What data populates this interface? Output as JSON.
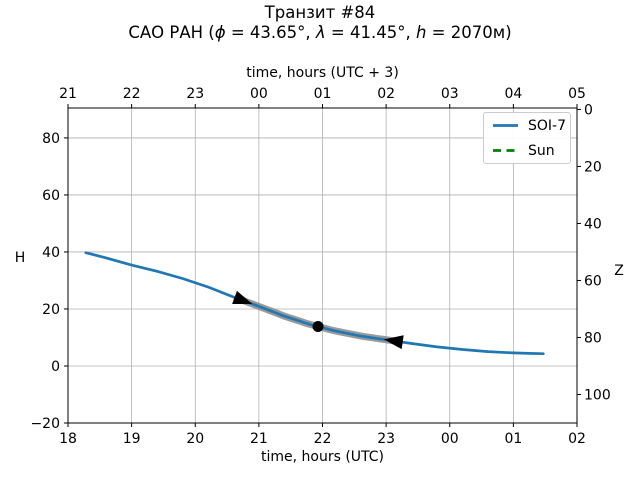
{
  "figure_title": "Транзит #84",
  "subtitle_segments": [
    {
      "text": "САО РАН (",
      "italic": false
    },
    {
      "text": "ϕ",
      "italic": true
    },
    {
      "text": " = 43.65°, ",
      "italic": false
    },
    {
      "text": "λ",
      "italic": true
    },
    {
      "text": " = 41.45°, ",
      "italic": false
    },
    {
      "text": "h",
      "italic": true
    },
    {
      "text": " = 2070м)",
      "italic": false
    }
  ],
  "chart_data": {
    "type": "line",
    "title": "Транзит #84",
    "subtitle": "САО РАН (ϕ = 43.65°, λ = 41.45°, h = 2070м)",
    "site": {
      "name": "САО РАН",
      "phi_deg": 43.65,
      "lambda_deg": 41.45,
      "h_m": 2070
    },
    "transit_number": 84,
    "xlabel_bottom": "time, hours (UTC)",
    "xlabel_top": "time, hours (UTC + 3)",
    "ylabel_left": "H",
    "ylabel_right": "Z",
    "grid": true,
    "x_axis": {
      "range_utc": [
        18,
        26
      ],
      "tick_values": [
        18,
        19,
        20,
        21,
        22,
        23,
        24,
        25,
        26
      ],
      "tick_labels_bottom": [
        "18",
        "19",
        "20",
        "21",
        "22",
        "23",
        "00",
        "01",
        "02"
      ],
      "tick_labels_top": [
        "21",
        "22",
        "23",
        "00",
        "01",
        "02",
        "03",
        "04",
        "05"
      ]
    },
    "y_axis_left": {
      "label": "H",
      "range": [
        -20,
        90.5
      ],
      "ticks": [
        -20,
        0,
        20,
        40,
        60,
        80
      ]
    },
    "y_axis_right": {
      "label": "Z",
      "ticks": [
        0,
        20,
        40,
        60,
        80,
        100
      ],
      "relation": "Z = 90 - H"
    },
    "series": [
      {
        "name": "SOI-7",
        "color": "#1f77b4",
        "dashed": false,
        "x": [
          18.28,
          18.6,
          19.0,
          19.4,
          19.8,
          20.2,
          20.6,
          21.0,
          21.4,
          21.8,
          22.2,
          22.6,
          23.0,
          23.4,
          23.8,
          24.2,
          24.6,
          25.0,
          25.25,
          25.47
        ],
        "y": [
          39.75,
          37.9,
          35.4,
          33.2,
          30.7,
          27.7,
          24.2,
          20.9,
          17.5,
          14.6,
          12.3,
          10.5,
          9.2,
          7.9,
          6.7,
          5.8,
          5.05,
          4.6,
          4.4,
          4.3
        ]
      },
      {
        "name": "Sun",
        "color": "#008000",
        "dashed": true,
        "x": [],
        "y": []
      }
    ],
    "transit": {
      "start_utc": 20.75,
      "mid_utc": 21.93,
      "end_utc": 23.12,
      "start_H": 22.1,
      "mid_H": 13.3,
      "end_H": 8.9,
      "band_color": "#8f8f8f"
    },
    "markers": [
      {
        "shape": "triangle-right",
        "t": 20.75
      },
      {
        "shape": "circle",
        "t": 21.93
      },
      {
        "shape": "triangle-left",
        "t": 23.12
      }
    ],
    "legend": {
      "position": "upper-right",
      "items": [
        {
          "label": "SOI-7",
          "color": "#1f77b4",
          "dash": false
        },
        {
          "label": "Sun",
          "color": "#008000",
          "dash": true
        }
      ]
    }
  }
}
